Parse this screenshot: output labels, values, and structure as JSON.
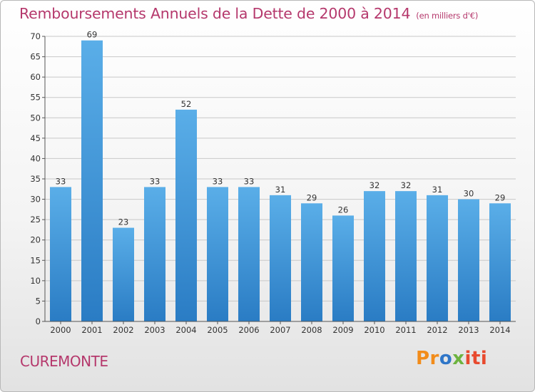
{
  "header": {
    "title": "Remboursements Annuels de la Dette de 2000 à 2014",
    "unit": "(en milliers d'€)"
  },
  "footer": {
    "town": "CUREMONTE",
    "logo": {
      "p": "Pr",
      "o": "o",
      "x": "x",
      "i": "iti"
    }
  },
  "colors": {
    "title": "#b5386c",
    "bar_light": "#5aaee8",
    "bar_dark": "#2a7cc4",
    "grid": "#c8c8c8"
  },
  "chart_data": {
    "type": "bar",
    "title": "Remboursements Annuels de la Dette de 2000 à 2014",
    "subtitle": "(en milliers d'€)",
    "categories": [
      "2000",
      "2001",
      "2002",
      "2003",
      "2004",
      "2005",
      "2006",
      "2007",
      "2008",
      "2009",
      "2010",
      "2011",
      "2012",
      "2013",
      "2014"
    ],
    "values": [
      33,
      69,
      23,
      33,
      52,
      33,
      33,
      31,
      29,
      26,
      32,
      32,
      31,
      30,
      29
    ],
    "ylim": [
      0,
      70
    ],
    "yticks": [
      0,
      5,
      10,
      15,
      20,
      25,
      30,
      35,
      40,
      45,
      50,
      55,
      60,
      65,
      70
    ],
    "grid": true,
    "xlabel": "",
    "ylabel": ""
  }
}
